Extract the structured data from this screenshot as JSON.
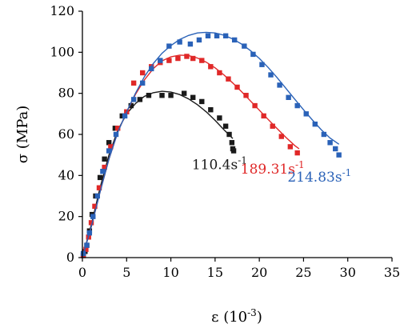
{
  "chart_data": {
    "type": "scatter",
    "xlabel": "ε (10",
    "xlabel_exp": "-3",
    "xlabel_close": ")",
    "ylabel": "σ (MPa)",
    "xlim": [
      0,
      35
    ],
    "ylim": [
      0,
      120
    ],
    "xticks": [
      0,
      5,
      10,
      15,
      20,
      25,
      30,
      35
    ],
    "yticks": [
      0,
      20,
      40,
      60,
      80,
      100,
      120
    ],
    "grid": false,
    "series": [
      {
        "name": "110.4s",
        "name_exp": "-1",
        "color": "#1a1a1a",
        "label_anchor": [
          15.5,
          43
        ],
        "points": [
          [
            0.1,
            1
          ],
          [
            0.3,
            3
          ],
          [
            0.5,
            6
          ],
          [
            0.8,
            13
          ],
          [
            1.1,
            21
          ],
          [
            1.5,
            30
          ],
          [
            2.0,
            39
          ],
          [
            2.5,
            48
          ],
          [
            3.0,
            56
          ],
          [
            3.7,
            63
          ],
          [
            4.5,
            69
          ],
          [
            5.5,
            74
          ],
          [
            6.5,
            77
          ],
          [
            7.5,
            79
          ],
          [
            9.0,
            79
          ],
          [
            10.0,
            79
          ],
          [
            11.5,
            80
          ],
          [
            12.5,
            78
          ],
          [
            13.5,
            76
          ],
          [
            14.5,
            72
          ],
          [
            15.5,
            68
          ],
          [
            16.2,
            64
          ],
          [
            16.6,
            60
          ],
          [
            16.9,
            56
          ],
          [
            17.0,
            53
          ],
          [
            17.1,
            52
          ]
        ],
        "fit": [
          [
            0,
            0
          ],
          [
            1,
            16
          ],
          [
            2,
            34
          ],
          [
            3,
            50
          ],
          [
            4,
            62
          ],
          [
            5,
            70
          ],
          [
            6,
            75
          ],
          [
            7,
            78.5
          ],
          [
            8,
            80.3
          ],
          [
            9,
            81
          ],
          [
            10,
            80.6
          ],
          [
            11,
            79.4
          ],
          [
            12,
            77.3
          ],
          [
            13,
            74.5
          ],
          [
            14,
            71
          ],
          [
            15,
            66.8
          ],
          [
            16,
            62.3
          ],
          [
            17,
            58
          ]
        ]
      },
      {
        "name": "189.31s",
        "name_exp": "-1",
        "color": "#e02828",
        "label_anchor": [
          21.5,
          41
        ],
        "points": [
          [
            0.1,
            1
          ],
          [
            0.4,
            4
          ],
          [
            0.7,
            10
          ],
          [
            1.0,
            17
          ],
          [
            1.4,
            25
          ],
          [
            1.9,
            34
          ],
          [
            2.5,
            44
          ],
          [
            3.2,
            54
          ],
          [
            4.0,
            63
          ],
          [
            5.0,
            71
          ],
          [
            5.8,
            85
          ],
          [
            6.8,
            90
          ],
          [
            7.8,
            93
          ],
          [
            8.8,
            95
          ],
          [
            9.8,
            96
          ],
          [
            10.8,
            97
          ],
          [
            11.8,
            98
          ],
          [
            12.5,
            97
          ],
          [
            13.5,
            96
          ],
          [
            14.5,
            93
          ],
          [
            15.5,
            90
          ],
          [
            16.5,
            87
          ],
          [
            17.5,
            83
          ],
          [
            18.5,
            79
          ],
          [
            19.5,
            74
          ],
          [
            20.5,
            69
          ],
          [
            21.5,
            64
          ],
          [
            22.5,
            59
          ],
          [
            23.5,
            54
          ],
          [
            24.3,
            51
          ]
        ],
        "fit": [
          [
            0,
            0
          ],
          [
            1,
            15
          ],
          [
            2,
            32
          ],
          [
            3,
            48
          ],
          [
            4,
            61
          ],
          [
            5,
            71
          ],
          [
            6,
            79.5
          ],
          [
            7,
            86.5
          ],
          [
            8,
            92
          ],
          [
            9,
            95.8
          ],
          [
            10,
            97.8
          ],
          [
            11,
            98.6
          ],
          [
            12,
            98.4
          ],
          [
            13,
            97.2
          ],
          [
            14,
            95.2
          ],
          [
            15,
            92.4
          ],
          [
            16,
            89
          ],
          [
            17,
            85
          ],
          [
            18,
            80.8
          ],
          [
            19,
            76.3
          ],
          [
            20,
            71.8
          ],
          [
            21,
            67.3
          ],
          [
            22,
            62.9
          ],
          [
            23,
            58.6
          ],
          [
            24,
            54.6
          ],
          [
            24.5,
            53
          ]
        ]
      },
      {
        "name": "214.83s",
        "name_exp": "-1",
        "color": "#2a62b8",
        "label_anchor": [
          26.8,
          37
        ],
        "points": [
          [
            0.1,
            2
          ],
          [
            0.5,
            6
          ],
          [
            0.8,
            12
          ],
          [
            1.2,
            20
          ],
          [
            1.7,
            30
          ],
          [
            2.3,
            42
          ],
          [
            3.0,
            52
          ],
          [
            3.8,
            60
          ],
          [
            4.8,
            69
          ],
          [
            5.8,
            77
          ],
          [
            6.8,
            85
          ],
          [
            7.8,
            92
          ],
          [
            8.8,
            96
          ],
          [
            9.8,
            103
          ],
          [
            11.0,
            105
          ],
          [
            12.2,
            104
          ],
          [
            13.2,
            106
          ],
          [
            14.2,
            108
          ],
          [
            15.2,
            108
          ],
          [
            16.2,
            108
          ],
          [
            17.2,
            106
          ],
          [
            18.3,
            103
          ],
          [
            19.3,
            99
          ],
          [
            20.3,
            94
          ],
          [
            21.3,
            89
          ],
          [
            22.3,
            84
          ],
          [
            23.3,
            78
          ],
          [
            24.3,
            74
          ],
          [
            25.3,
            70
          ],
          [
            26.3,
            65
          ],
          [
            27.3,
            60
          ],
          [
            28.0,
            56
          ],
          [
            28.6,
            53
          ],
          [
            29.0,
            50
          ]
        ],
        "fit": [
          [
            0,
            0
          ],
          [
            1,
            15
          ],
          [
            2,
            32
          ],
          [
            3,
            48
          ],
          [
            4,
            61
          ],
          [
            5,
            71
          ],
          [
            6,
            80
          ],
          [
            7,
            88
          ],
          [
            8,
            94.5
          ],
          [
            9,
            99.5
          ],
          [
            10,
            103.3
          ],
          [
            11,
            106.2
          ],
          [
            12,
            108.2
          ],
          [
            13,
            109.4
          ],
          [
            14,
            109.7
          ],
          [
            15,
            109.4
          ],
          [
            16,
            108.3
          ],
          [
            17,
            106.5
          ],
          [
            18,
            104
          ],
          [
            19,
            100.8
          ],
          [
            20,
            97
          ],
          [
            21,
            92.6
          ],
          [
            22,
            87.7
          ],
          [
            23,
            82.5
          ],
          [
            24,
            77.2
          ],
          [
            25,
            72
          ],
          [
            26,
            67
          ],
          [
            27,
            62.3
          ],
          [
            28,
            58.2
          ],
          [
            29,
            55.2
          ]
        ]
      }
    ]
  }
}
